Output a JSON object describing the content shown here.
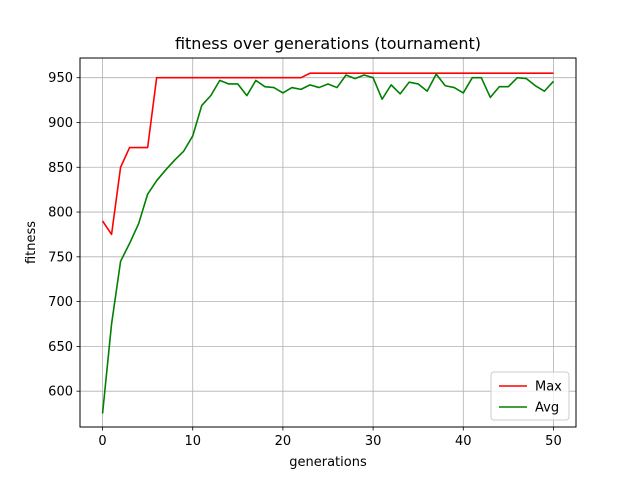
{
  "chart_data": {
    "type": "line",
    "title": "fitness over generations (tournament)",
    "xlabel": "generations",
    "ylabel": "fitness",
    "xlim": [
      -2.5,
      52.5
    ],
    "ylim": [
      560,
      972
    ],
    "xticks": [
      0,
      10,
      20,
      30,
      40,
      50
    ],
    "yticks": [
      600,
      650,
      700,
      750,
      800,
      850,
      900,
      950
    ],
    "grid": true,
    "legend_position": "lower-right",
    "series": [
      {
        "name": "Max",
        "color": "#ff0000",
        "x": [
          0,
          1,
          2,
          3,
          4,
          5,
          6,
          7,
          8,
          9,
          10,
          11,
          12,
          13,
          14,
          15,
          16,
          17,
          18,
          19,
          20,
          21,
          22,
          23,
          24,
          25,
          26,
          27,
          28,
          29,
          30,
          31,
          32,
          33,
          34,
          35,
          36,
          37,
          38,
          39,
          40,
          41,
          42,
          43,
          44,
          45,
          46,
          47,
          48,
          49,
          50
        ],
        "y": [
          790,
          775,
          850,
          872,
          872,
          872,
          950,
          950,
          950,
          950,
          950,
          950,
          950,
          950,
          950,
          950,
          950,
          950,
          950,
          950,
          950,
          950,
          950,
          955,
          955,
          955,
          955,
          955,
          955,
          955,
          955,
          955,
          955,
          955,
          955,
          955,
          955,
          955,
          955,
          955,
          955,
          955,
          955,
          955,
          955,
          955,
          955,
          955,
          955,
          955,
          955
        ]
      },
      {
        "name": "Avg",
        "color": "#008000",
        "x": [
          0,
          1,
          2,
          3,
          4,
          5,
          6,
          7,
          8,
          9,
          10,
          11,
          12,
          13,
          14,
          15,
          16,
          17,
          18,
          19,
          20,
          21,
          22,
          23,
          24,
          25,
          26,
          27,
          28,
          29,
          30,
          31,
          32,
          33,
          34,
          35,
          36,
          37,
          38,
          39,
          40,
          41,
          42,
          43,
          44,
          45,
          46,
          47,
          48,
          49,
          50
        ],
        "y": [
          575,
          675,
          745,
          765,
          787,
          820,
          835,
          847,
          858,
          868,
          885,
          919,
          930,
          947,
          943,
          943,
          930,
          947,
          940,
          939,
          933,
          939,
          937,
          942,
          939,
          943,
          939,
          953,
          949,
          953,
          950,
          926,
          942,
          932,
          945,
          943,
          935,
          954,
          941,
          939,
          933,
          950,
          950,
          928,
          940,
          940,
          950,
          949,
          941,
          935,
          946
        ]
      }
    ]
  }
}
